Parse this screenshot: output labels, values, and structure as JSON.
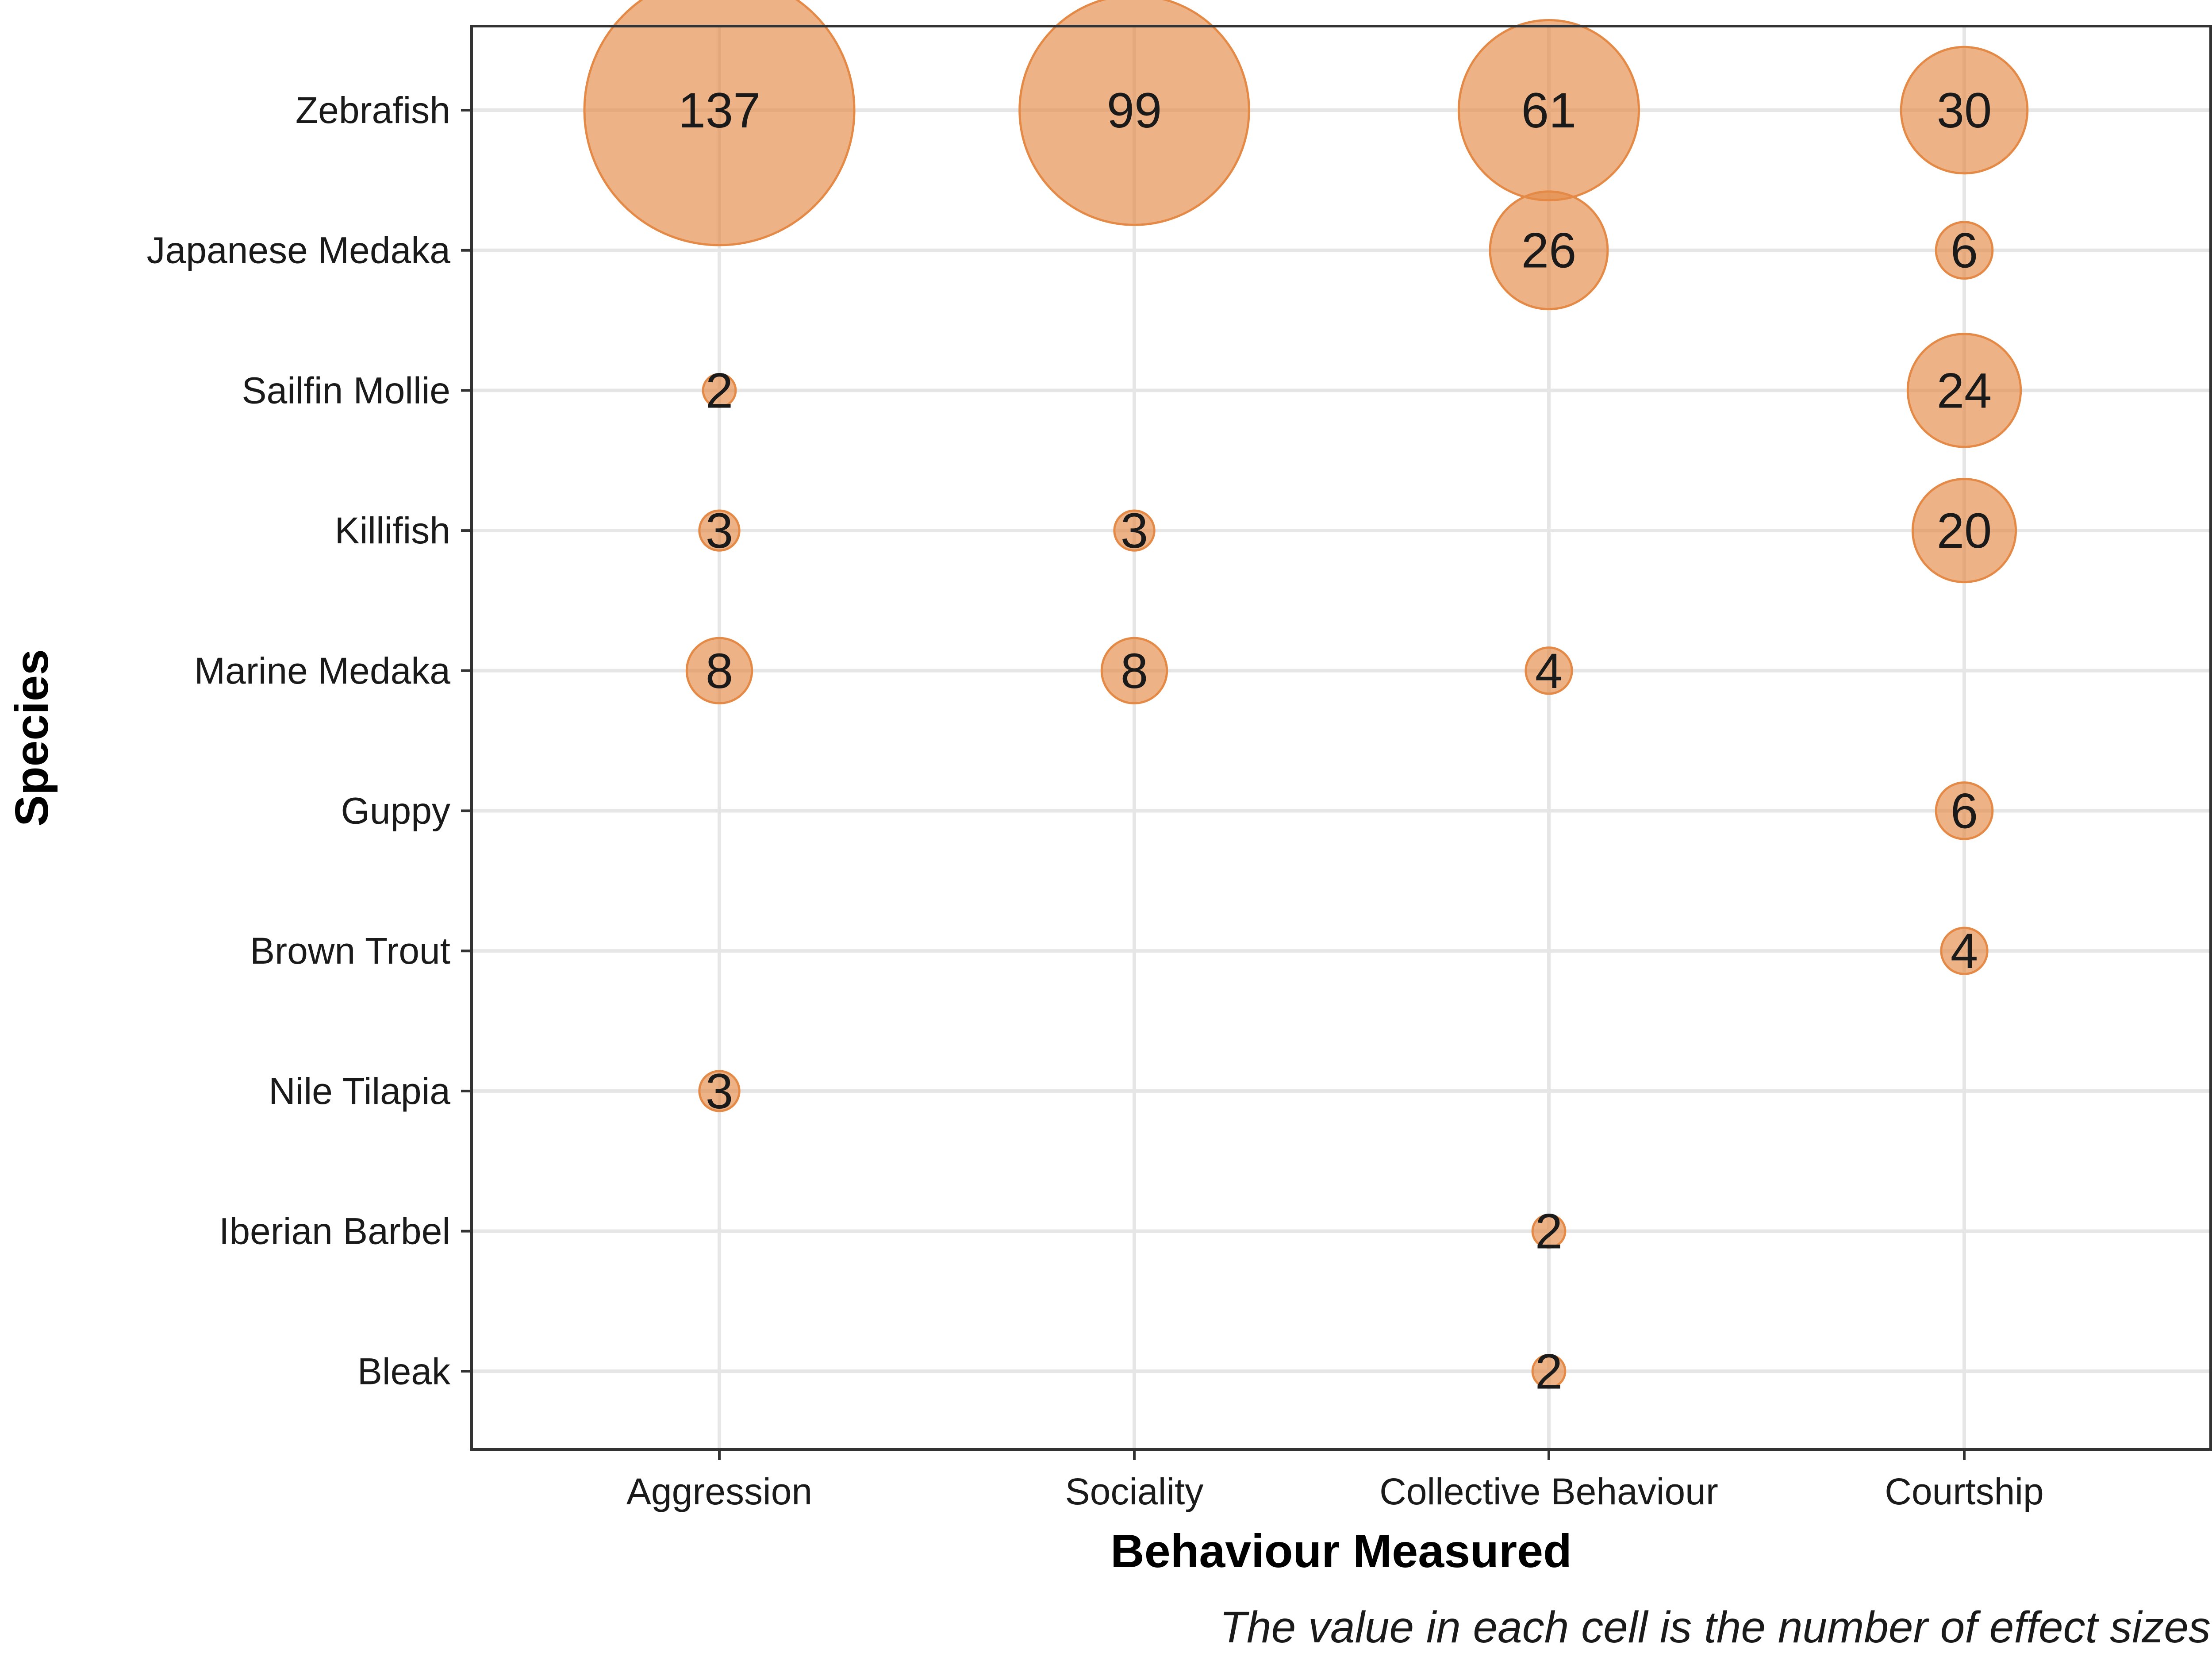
{
  "chart_data": {
    "type": "scatter",
    "subtype": "bubble",
    "xlabel": "Behaviour Measured",
    "ylabel": "Species",
    "caption": "The value in each cell is the number of effect sizes",
    "categories_x": [
      "Aggression",
      "Sociality",
      "Collective Behaviour",
      "Courtship"
    ],
    "categories_y": [
      "Zebrafish",
      "Japanese Medaka",
      "Sailfin Mollie",
      "Killifish",
      "Marine Medaka",
      "Guppy",
      "Brown Trout",
      "Nile Tilapia",
      "Iberian Barbel",
      "Bleak"
    ],
    "points": [
      {
        "x": "Aggression",
        "y": "Zebrafish",
        "value": 137
      },
      {
        "x": "Sociality",
        "y": "Zebrafish",
        "value": 99
      },
      {
        "x": "Collective Behaviour",
        "y": "Zebrafish",
        "value": 61
      },
      {
        "x": "Courtship",
        "y": "Zebrafish",
        "value": 30
      },
      {
        "x": "Collective Behaviour",
        "y": "Japanese Medaka",
        "value": 26
      },
      {
        "x": "Courtship",
        "y": "Japanese Medaka",
        "value": 6
      },
      {
        "x": "Aggression",
        "y": "Sailfin Mollie",
        "value": 2
      },
      {
        "x": "Courtship",
        "y": "Sailfin Mollie",
        "value": 24
      },
      {
        "x": "Aggression",
        "y": "Killifish",
        "value": 3
      },
      {
        "x": "Sociality",
        "y": "Killifish",
        "value": 3
      },
      {
        "x": "Courtship",
        "y": "Killifish",
        "value": 20
      },
      {
        "x": "Aggression",
        "y": "Marine Medaka",
        "value": 8
      },
      {
        "x": "Sociality",
        "y": "Marine Medaka",
        "value": 8
      },
      {
        "x": "Collective Behaviour",
        "y": "Marine Medaka",
        "value": 4
      },
      {
        "x": "Courtship",
        "y": "Guppy",
        "value": 6
      },
      {
        "x": "Courtship",
        "y": "Brown Trout",
        "value": 4
      },
      {
        "x": "Aggression",
        "y": "Nile Tilapia",
        "value": 3
      },
      {
        "x": "Collective Behaviour",
        "y": "Iberian Barbel",
        "value": 2
      },
      {
        "x": "Collective Behaviour",
        "y": "Bleak",
        "value": 2
      }
    ],
    "grid": true,
    "legend": "none",
    "colors": {
      "bubble_fill": "#e48a46",
      "bubble_stroke": "#e48a46",
      "panel_border": "#333333"
    }
  }
}
